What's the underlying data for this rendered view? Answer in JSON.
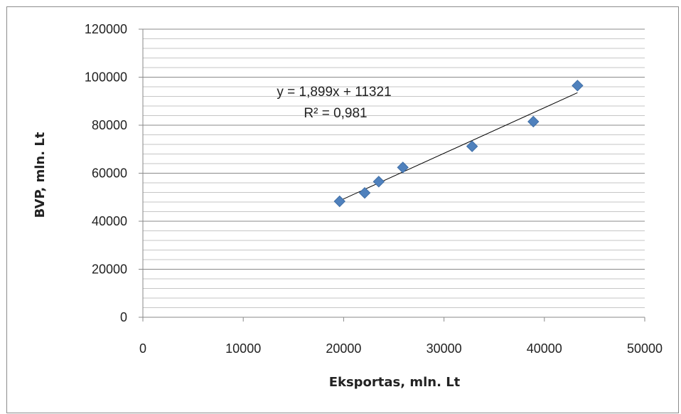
{
  "chart_data": {
    "type": "scatter",
    "xlabel": "Eksportas, mln. Lt",
    "ylabel": "BVP, mln. Lt",
    "xlim": [
      0,
      50000
    ],
    "ylim": [
      0,
      120000
    ],
    "x_ticks": [
      0,
      10000,
      20000,
      30000,
      40000,
      50000
    ],
    "y_ticks": [
      0,
      20000,
      40000,
      60000,
      80000,
      100000,
      120000
    ],
    "grid": true,
    "marker_color": "#4f81bd",
    "trendline_color": "#000000",
    "trendline": {
      "slope": 1.899,
      "intercept": 11321,
      "x_range": [
        19600,
        43300
      ]
    },
    "annotations": {
      "equation": "y = 1,899x + 11321",
      "r_squared": "R² = 0,981"
    },
    "series": [
      {
        "x": [
          19600,
          22100,
          23500,
          25900,
          32800,
          38900,
          43300
        ],
        "y": [
          48300,
          51800,
          56500,
          62400,
          71200,
          81500,
          96500
        ]
      }
    ]
  }
}
